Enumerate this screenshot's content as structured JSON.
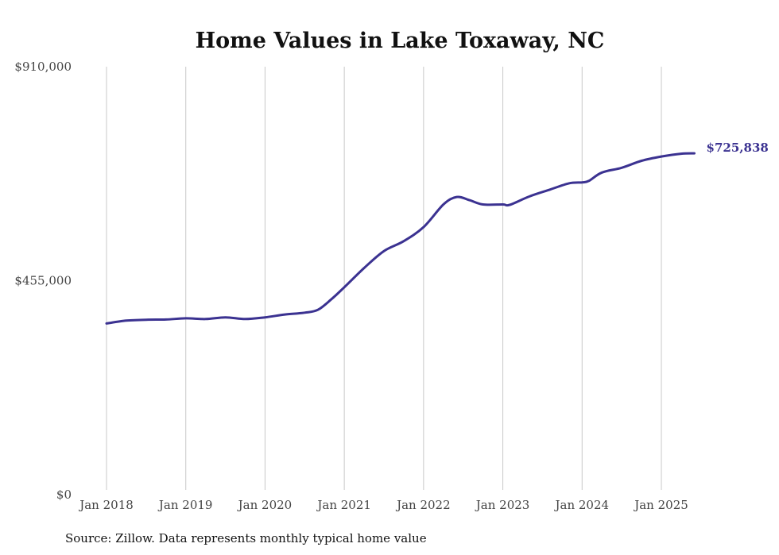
{
  "chart_data": {
    "type": "line",
    "title": "Home Values in Lake Toxaway, NC",
    "source": "Source: Zillow. Data represents monthly typical home value",
    "ylim": [
      0,
      910000
    ],
    "y_ticks": [
      {
        "value": 0,
        "label": "$0"
      },
      {
        "value": 455000,
        "label": "$455,000"
      },
      {
        "value": 910000,
        "label": "$910,000"
      }
    ],
    "x_ticks": [
      {
        "value": "2018-01",
        "label": "Jan 2018"
      },
      {
        "value": "2019-01",
        "label": "Jan 2019"
      },
      {
        "value": "2020-01",
        "label": "Jan 2020"
      },
      {
        "value": "2021-01",
        "label": "Jan 2021"
      },
      {
        "value": "2022-01",
        "label": "Jan 2022"
      },
      {
        "value": "2023-01",
        "label": "Jan 2023"
      },
      {
        "value": "2024-01",
        "label": "Jan 2024"
      },
      {
        "value": "2025-01",
        "label": "Jan 2025"
      }
    ],
    "grid": {
      "vertical": true,
      "horizontal": false
    },
    "series": [
      {
        "color": "#3b3291",
        "end_label": "$725,838",
        "points": [
          {
            "x": "2018-01",
            "y": 364000
          },
          {
            "x": "2018-04",
            "y": 370000
          },
          {
            "x": "2018-07",
            "y": 372000
          },
          {
            "x": "2018-10",
            "y": 372500
          },
          {
            "x": "2019-01",
            "y": 375000
          },
          {
            "x": "2019-04",
            "y": 373500
          },
          {
            "x": "2019-07",
            "y": 377000
          },
          {
            "x": "2019-10",
            "y": 373500
          },
          {
            "x": "2020-01",
            "y": 377000
          },
          {
            "x": "2020-04",
            "y": 383000
          },
          {
            "x": "2020-07",
            "y": 387000
          },
          {
            "x": "2020-09",
            "y": 393000
          },
          {
            "x": "2020-11",
            "y": 415000
          },
          {
            "x": "2021-01",
            "y": 441000
          },
          {
            "x": "2021-04",
            "y": 482000
          },
          {
            "x": "2021-07",
            "y": 518000
          },
          {
            "x": "2021-10",
            "y": 539000
          },
          {
            "x": "2022-01",
            "y": 569000
          },
          {
            "x": "2022-04",
            "y": 617000
          },
          {
            "x": "2022-06",
            "y": 633000
          },
          {
            "x": "2022-08",
            "y": 626000
          },
          {
            "x": "2022-10",
            "y": 617000
          },
          {
            "x": "2023-01",
            "y": 617000
          },
          {
            "x": "2023-02",
            "y": 616000
          },
          {
            "x": "2023-05",
            "y": 634000
          },
          {
            "x": "2023-08",
            "y": 648000
          },
          {
            "x": "2023-11",
            "y": 662000
          },
          {
            "x": "2024-01",
            "y": 664000
          },
          {
            "x": "2024-02",
            "y": 667000
          },
          {
            "x": "2024-04",
            "y": 685000
          },
          {
            "x": "2024-07",
            "y": 695000
          },
          {
            "x": "2024-10",
            "y": 710000
          },
          {
            "x": "2025-01",
            "y": 719000
          },
          {
            "x": "2025-04",
            "y": 725000
          },
          {
            "x": "2025-06",
            "y": 725838
          }
        ]
      }
    ]
  }
}
